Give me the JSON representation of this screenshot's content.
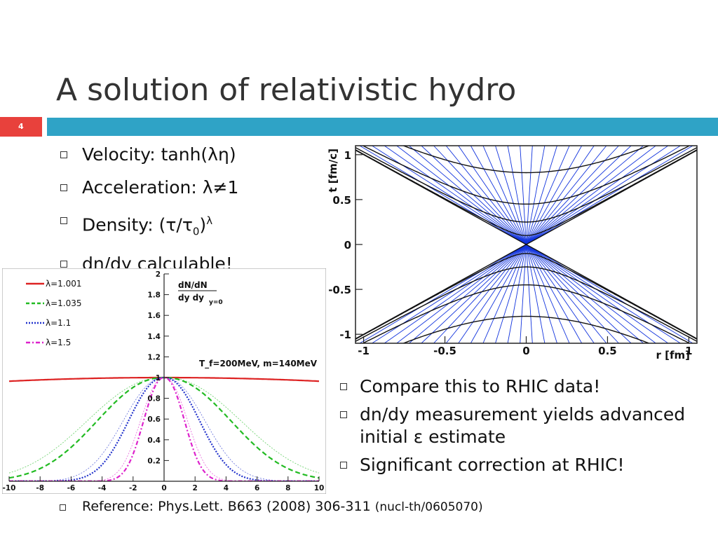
{
  "slide": {
    "title": "A solution of relativistic hydro",
    "number": "4",
    "accent_color": "#2fa3c6",
    "number_color": "#e8413c"
  },
  "bullets_top": [
    {
      "text": "Velocity: tanh(λη)"
    },
    {
      "text": "Acceleration: λ≠1"
    },
    {
      "text_pre": "Density: (τ/τ",
      "sub": "0",
      "text_post": ")",
      "sup": "λ"
    },
    {
      "text": "dn/dy calculable!"
    }
  ],
  "bullets_right": [
    {
      "text": "Compare this to RHIC data!"
    },
    {
      "text": "dn/dy measurement yields advanced initial ε estimate"
    },
    {
      "text": "Significant correction at RHIC!"
    }
  ],
  "reference": {
    "main": "Reference: Phys.Lett. B663 (2008) 306-311",
    "arxiv": "(nucl-th/0605070)"
  },
  "chart_data": [
    {
      "type": "line",
      "title": "",
      "annotation": "T_f=200MeV, m=140MeV",
      "ylabel_lines": [
        "dN/dN",
        "dy dy"
      ],
      "ylabel_sub": "y=0",
      "xlim": [
        -10,
        10
      ],
      "ylim": [
        0,
        2
      ],
      "xticks": [
        "-10",
        "-8",
        "-6",
        "-4",
        "-2",
        "0",
        "2",
        "4",
        "6",
        "8",
        "10"
      ],
      "yticks": [
        "0.2",
        "0.4",
        "0.6",
        "0.8",
        "1",
        "1.2",
        "1.4",
        "1.6",
        "1.8",
        "2"
      ],
      "legend_position": "top-left",
      "series": [
        {
          "name": "λ=1.001",
          "color": "#dd2222",
          "style": "solid",
          "lambda": 1.001
        },
        {
          "name": "λ=1.035",
          "color": "#22bb22",
          "style": "dashed",
          "lambda": 1.035
        },
        {
          "name": "λ=1.1",
          "color": "#2233cc",
          "style": "dotted",
          "lambda": 1.1
        },
        {
          "name": "λ=1.5",
          "color": "#dd22cc",
          "style": "dashdot",
          "lambda": 1.5
        }
      ]
    },
    {
      "type": "line",
      "title": "",
      "xlabel": "r [fm]",
      "ylabel": "t [fm/c]",
      "xlim": [
        -1.05,
        1.05
      ],
      "ylim": [
        -1.1,
        1.1
      ],
      "xticks": [
        "-1",
        "-0.5",
        "0",
        "0.5",
        "1"
      ],
      "yticks": [
        "1",
        "0.5",
        "0",
        "-0.5",
        "-1"
      ],
      "hyperbola_levels": [
        0.1,
        0.25,
        0.45,
        0.8
      ],
      "streamline_count": 30,
      "colors": {
        "lines": "#1133dd",
        "hyperbolas": "#111111"
      }
    }
  ]
}
